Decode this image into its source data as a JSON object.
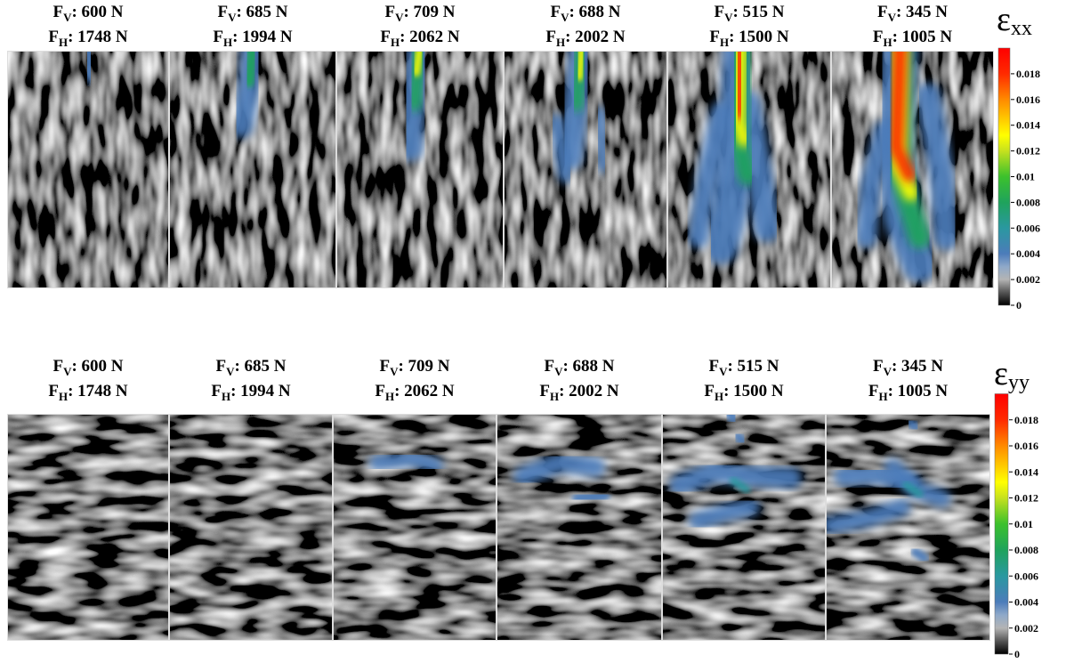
{
  "force_symbol": "F",
  "vertical_sub": "V",
  "horizontal_sub": "H",
  "strain_symbol": "ε",
  "rows": [
    {
      "subscript": "xx",
      "panels": [
        {
          "vertical": ": 600 N",
          "horizontal": ": 1748 N"
        },
        {
          "vertical": ": 685 N",
          "horizontal": ": 1994 N"
        },
        {
          "vertical": ": 709 N",
          "horizontal": ": 2062 N"
        },
        {
          "vertical": ": 688 N",
          "horizontal": ": 2002 N"
        },
        {
          "vertical": ": 515 N",
          "horizontal": ": 1500 N"
        },
        {
          "vertical": ": 345 N",
          "horizontal": ": 1005 N"
        }
      ]
    },
    {
      "subscript": "yy",
      "panels": [
        {
          "vertical": ": 600 N",
          "horizontal": ": 1748 N"
        },
        {
          "vertical": ": 685 N",
          "horizontal": ": 1994 N"
        },
        {
          "vertical": ": 709 N",
          "horizontal": ": 2062 N"
        },
        {
          "vertical": ": 688 N",
          "horizontal": ": 2002 N"
        },
        {
          "vertical": ": 515 N",
          "horizontal": ": 1500 N"
        },
        {
          "vertical": ": 345 N",
          "horizontal": ": 1005 N"
        }
      ]
    }
  ],
  "colorbar": {
    "range": [
      0,
      0.02
    ],
    "ticks": [
      0,
      0.002,
      0.004,
      0.006,
      0.008,
      0.01,
      0.012,
      0.014,
      0.016,
      0.018
    ]
  }
}
